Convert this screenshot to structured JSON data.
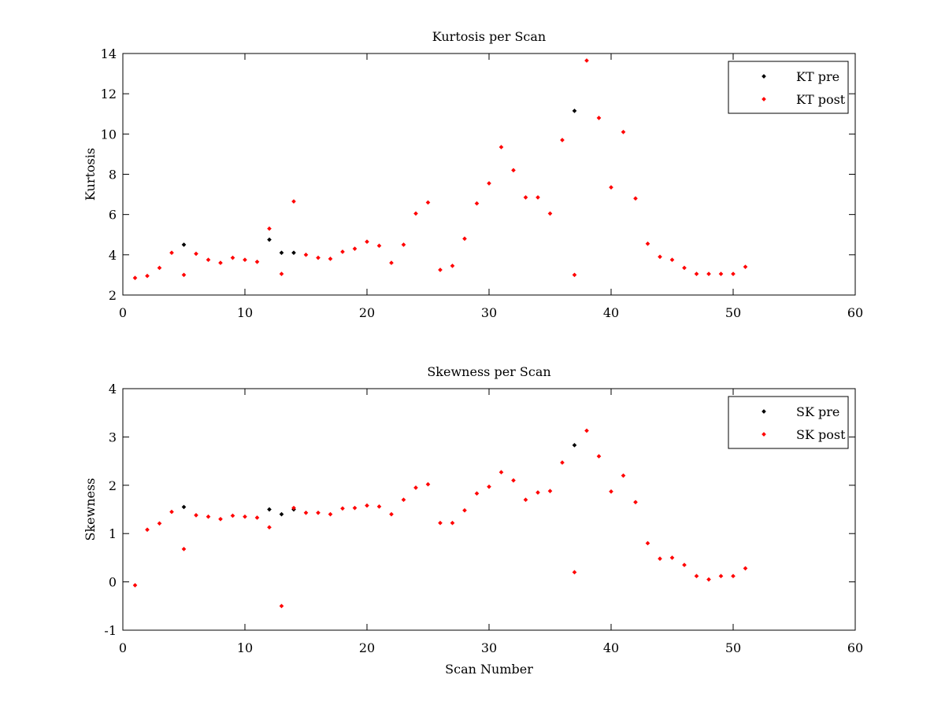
{
  "chart_data": [
    {
      "type": "scatter",
      "title": "Kurtosis per Scan",
      "xlabel": "",
      "ylabel": "Kurtosis",
      "xlim": [
        0,
        60
      ],
      "ylim": [
        2,
        14
      ],
      "xticks": [
        0,
        10,
        20,
        30,
        40,
        50,
        60
      ],
      "yticks": [
        2,
        4,
        6,
        8,
        10,
        12,
        14
      ],
      "grid": false,
      "legend_position": "top-right",
      "series": [
        {
          "name": "KT pre",
          "color": "#000000",
          "x": [
            5,
            12,
            13,
            14,
            37
          ],
          "y": [
            4.5,
            4.75,
            4.1,
            4.1,
            11.15
          ]
        },
        {
          "name": "KT post",
          "color": "#ff0000",
          "x": [
            1,
            2,
            3,
            4,
            5,
            6,
            7,
            8,
            9,
            10,
            11,
            12,
            13,
            14,
            15,
            16,
            17,
            18,
            19,
            20,
            21,
            22,
            23,
            24,
            25,
            26,
            27,
            28,
            29,
            30,
            31,
            32,
            33,
            34,
            35,
            36,
            37,
            38,
            39,
            40,
            41,
            42,
            43,
            44,
            45,
            46,
            47,
            48,
            49,
            50,
            51
          ],
          "y": [
            2.85,
            2.95,
            3.35,
            4.1,
            3.0,
            4.05,
            3.75,
            3.6,
            3.85,
            3.75,
            3.65,
            5.3,
            3.05,
            6.65,
            4.0,
            3.85,
            3.8,
            4.15,
            4.3,
            4.65,
            4.45,
            3.6,
            4.5,
            6.05,
            6.6,
            3.25,
            3.45,
            4.8,
            6.55,
            7.55,
            9.35,
            8.2,
            6.85,
            6.85,
            6.05,
            9.7,
            3.0,
            13.65,
            10.8,
            7.35,
            10.1,
            6.8,
            4.55,
            3.9,
            3.75,
            3.35,
            3.05,
            3.05,
            3.05,
            3.05,
            3.4
          ]
        }
      ]
    },
    {
      "type": "scatter",
      "title": "Skewness per Scan",
      "xlabel": "Scan Number",
      "ylabel": "Skewness",
      "xlim": [
        0,
        60
      ],
      "ylim": [
        -1,
        4
      ],
      "xticks": [
        0,
        10,
        20,
        30,
        40,
        50,
        60
      ],
      "yticks": [
        -1,
        0,
        1,
        2,
        3,
        4
      ],
      "grid": false,
      "legend_position": "top-right",
      "series": [
        {
          "name": "SK pre",
          "color": "#000000",
          "x": [
            5,
            12,
            13,
            14,
            37
          ],
          "y": [
            1.55,
            1.5,
            1.4,
            1.5,
            2.83
          ]
        },
        {
          "name": "SK post",
          "color": "#ff0000",
          "x": [
            1,
            2,
            3,
            4,
            5,
            6,
            7,
            8,
            9,
            10,
            11,
            12,
            13,
            14,
            15,
            16,
            17,
            18,
            19,
            20,
            21,
            22,
            23,
            24,
            25,
            26,
            27,
            28,
            29,
            30,
            31,
            32,
            33,
            34,
            35,
            36,
            37,
            38,
            39,
            40,
            41,
            42,
            43,
            44,
            45,
            46,
            47,
            48,
            49,
            50,
            51
          ],
          "y": [
            -0.07,
            1.08,
            1.21,
            1.45,
            0.68,
            1.38,
            1.35,
            1.3,
            1.37,
            1.35,
            1.33,
            1.13,
            -0.5,
            1.53,
            1.43,
            1.43,
            1.4,
            1.52,
            1.53,
            1.58,
            1.56,
            1.4,
            1.7,
            1.95,
            2.02,
            1.22,
            1.22,
            1.48,
            1.83,
            1.97,
            2.27,
            2.1,
            1.7,
            1.85,
            1.88,
            2.47,
            0.2,
            3.13,
            2.6,
            1.87,
            2.2,
            1.65,
            0.8,
            0.48,
            0.5,
            0.35,
            0.12,
            0.05,
            0.12,
            0.12,
            0.28
          ]
        }
      ]
    }
  ]
}
